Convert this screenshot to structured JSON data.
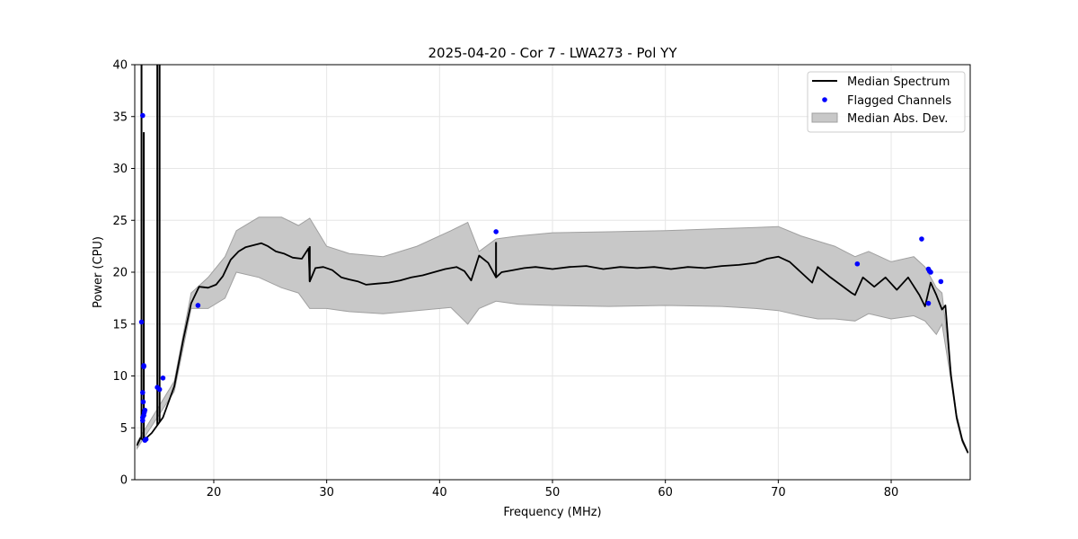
{
  "chart_data": {
    "type": "line",
    "title": "2025-04-20 - Cor 7 - LWA273 - Pol YY",
    "xlabel": "Frequency (MHz)",
    "ylabel": "Power (CPU)",
    "xlim": [
      13.0,
      87.0
    ],
    "ylim": [
      0,
      40
    ],
    "xticks": [
      20,
      30,
      40,
      50,
      60,
      70,
      80
    ],
    "yticks": [
      0,
      5,
      10,
      15,
      20,
      25,
      30,
      35,
      40
    ],
    "grid": true,
    "legend_position": "top-right",
    "legend": [
      "Median Spectrum",
      "Flagged Channels",
      "Median Abs. Dev."
    ],
    "colors": {
      "median": "#000000",
      "flagged": "#0000ff",
      "band": "#c8c8c8",
      "band_edge": "#a0a0a0"
    },
    "series": [
      {
        "name": "Median Spectrum",
        "x": [
          13.2,
          13.5,
          13.8,
          14.5,
          15.5,
          16.5,
          17.3,
          18.0,
          18.7,
          19.5,
          20.2,
          20.8,
          21.5,
          22.2,
          22.8,
          23.5,
          24.2,
          24.8,
          25.5,
          26.2,
          27.0,
          27.8,
          28.4,
          28.5,
          29.0,
          29.7,
          30.5,
          31.3,
          32.0,
          32.8,
          33.5,
          34.5,
          35.5,
          36.5,
          37.5,
          38.5,
          39.5,
          40.5,
          41.5,
          42.2,
          42.8,
          43.5,
          44.3,
          45.0,
          45.5,
          46.5,
          47.5,
          48.5,
          50.0,
          51.5,
          53.0,
          54.5,
          56.0,
          57.5,
          59.0,
          60.5,
          62.0,
          63.5,
          65.0,
          66.5,
          68.0,
          69.0,
          70.0,
          71.0,
          72.0,
          73.0,
          73.5,
          74.5,
          75.5,
          76.5,
          76.8,
          77.5,
          78.5,
          79.5,
          80.5,
          81.5,
          82.5,
          83.0,
          83.5,
          84.0,
          84.5,
          84.8,
          85.3,
          85.8,
          86.3,
          86.8
        ],
        "y": [
          3.3,
          4.0,
          3.8,
          4.5,
          6.0,
          9.0,
          13.5,
          17.0,
          18.6,
          18.5,
          18.8,
          19.6,
          21.2,
          22.0,
          22.4,
          22.6,
          22.8,
          22.5,
          22.0,
          21.8,
          21.4,
          21.3,
          22.3,
          19.1,
          20.4,
          20.5,
          20.2,
          19.5,
          19.3,
          19.1,
          18.8,
          18.9,
          19.0,
          19.2,
          19.5,
          19.7,
          20.0,
          20.3,
          20.5,
          20.1,
          19.2,
          21.6,
          20.9,
          19.5,
          20.0,
          20.2,
          20.4,
          20.5,
          20.3,
          20.5,
          20.6,
          20.3,
          20.5,
          20.4,
          20.5,
          20.3,
          20.5,
          20.4,
          20.6,
          20.7,
          20.9,
          21.3,
          21.5,
          21.0,
          20.0,
          19.0,
          20.5,
          19.6,
          18.8,
          18.0,
          17.8,
          19.5,
          18.6,
          19.5,
          18.3,
          19.5,
          17.8,
          16.7,
          19.0,
          17.8,
          16.4,
          16.8,
          10.0,
          6.0,
          3.8,
          2.6
        ],
        "spikes": [
          {
            "x": 13.6,
            "y_top": 40
          },
          {
            "x": 13.8,
            "y_top": 33.5
          },
          {
            "x": 15.0,
            "y_top": 40
          },
          {
            "x": 15.2,
            "y_top": 40
          },
          {
            "x": 28.5,
            "y_top": 22.5
          },
          {
            "x": 45.0,
            "y_top": 22.9
          }
        ]
      }
    ],
    "band": {
      "name": "Median Abs. Dev.",
      "x": [
        13.2,
        16.5,
        18.0,
        19.5,
        21.0,
        22.0,
        24.0,
        26.0,
        27.5,
        28.5,
        30.0,
        32.0,
        35.0,
        38.0,
        41.0,
        42.5,
        43.5,
        45.0,
        47.0,
        50.0,
        55.0,
        60.0,
        65.0,
        68.0,
        70.0,
        72.0,
        73.5,
        75.0,
        76.8,
        78.0,
        80.0,
        82.0,
        83.0,
        84.0,
        84.5,
        85.3,
        85.8,
        86.3,
        86.8
      ],
      "upper": [
        3.6,
        9.5,
        18.0,
        19.5,
        21.5,
        24.0,
        25.3,
        25.3,
        24.5,
        25.2,
        22.5,
        21.8,
        21.5,
        22.5,
        24.0,
        24.8,
        22.0,
        23.2,
        23.5,
        23.8,
        23.9,
        24.0,
        24.2,
        24.3,
        24.4,
        23.5,
        23.0,
        22.5,
        21.5,
        22.0,
        21.0,
        21.5,
        20.5,
        18.5,
        18.0,
        10.5,
        6.3,
        4.0,
        2.7
      ],
      "lower": [
        3.0,
        8.5,
        16.5,
        16.5,
        17.5,
        20.0,
        19.5,
        18.5,
        18.0,
        16.5,
        16.5,
        16.2,
        16.0,
        16.3,
        16.6,
        15.0,
        16.5,
        17.2,
        16.9,
        16.8,
        16.7,
        16.8,
        16.7,
        16.5,
        16.3,
        15.8,
        15.5,
        15.5,
        15.3,
        16.0,
        15.5,
        15.8,
        15.3,
        14.0,
        15.0,
        9.6,
        5.7,
        3.6,
        2.5
      ]
    },
    "flagged": {
      "name": "Flagged Channels",
      "x": [
        13.6,
        13.7,
        13.8,
        13.8,
        13.85,
        13.9,
        13.9,
        14.0,
        13.7,
        13.75,
        13.7,
        13.7,
        13.8,
        15.0,
        15.2,
        15.5,
        18.6,
        45.0,
        77.0,
        82.7,
        83.3,
        83.4,
        83.5,
        83.3,
        84.4
      ],
      "y": [
        15.2,
        35.1,
        10.9,
        11.0,
        6.5,
        6.7,
        3.8,
        3.9,
        8.4,
        7.5,
        6.0,
        5.7,
        6.2,
        8.9,
        8.7,
        9.8,
        16.8,
        23.9,
        20.8,
        23.2,
        20.3,
        20.1,
        20.0,
        17.0,
        19.1
      ]
    }
  }
}
